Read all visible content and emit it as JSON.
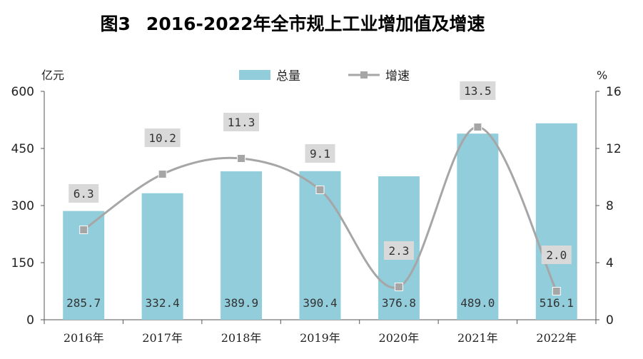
{
  "title": {
    "fig": "图3",
    "text": "2016-2022年全市规上工业增加值及增速"
  },
  "chart_data": {
    "type": "bar",
    "title": "图3 2016-2022年全市规上工业增加值及增速",
    "categories": [
      "2016年",
      "2017年",
      "2018年",
      "2019年",
      "2020年",
      "2021年",
      "2022年"
    ],
    "series": [
      {
        "name": "总量",
        "type": "bar",
        "axis": "left",
        "values": [
          285.7,
          332.4,
          389.9,
          390.4,
          376.8,
          489.0,
          516.1
        ],
        "labels": [
          "285.7",
          "332.4",
          "389.9",
          "390.4",
          "376.8",
          "489.0",
          "516.1"
        ]
      },
      {
        "name": "增速",
        "type": "line",
        "axis": "right",
        "values": [
          6.3,
          10.2,
          11.3,
          9.1,
          2.3,
          13.5,
          2.0
        ],
        "labels": [
          "6.3",
          "10.2",
          "11.3",
          "9.1",
          "2.3",
          "13.5",
          "2.0"
        ]
      }
    ],
    "y_left": {
      "unit": "亿元",
      "range": [
        0,
        600
      ],
      "ticks": [
        "0",
        "150",
        "300",
        "450",
        "600"
      ]
    },
    "y_right": {
      "unit": "%",
      "range": [
        0,
        16
      ],
      "ticks": [
        "0",
        "4",
        "8",
        "12",
        "16"
      ]
    },
    "legend": {
      "position": "top-center",
      "entries": [
        "总量",
        "增速"
      ]
    },
    "colors": {
      "bar": "#92CDDC",
      "line": "#A6A6A6",
      "label_box": "#D9D9D9"
    }
  }
}
